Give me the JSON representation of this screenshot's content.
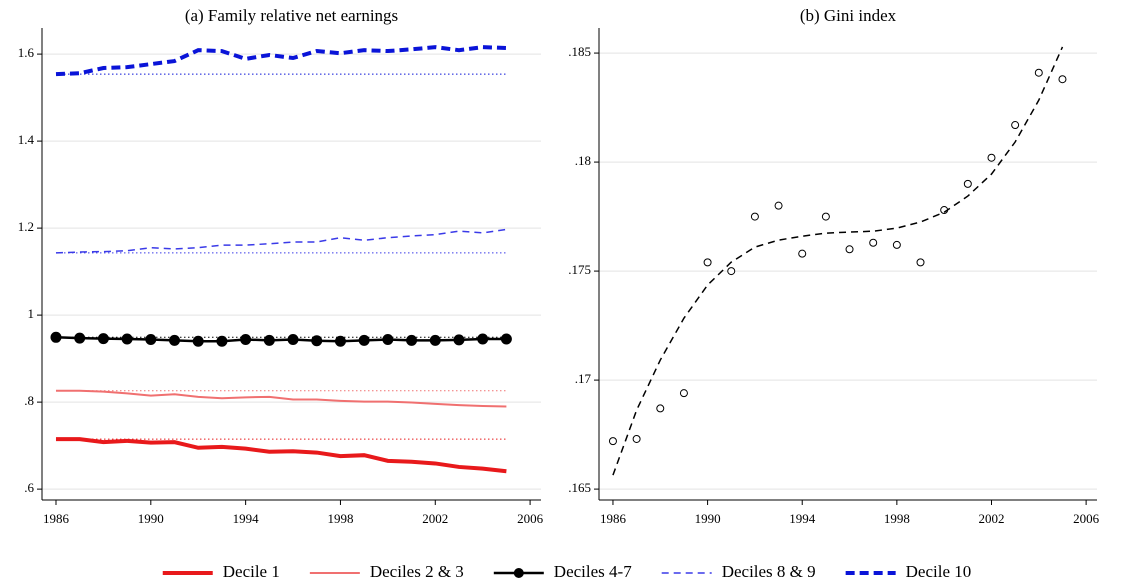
{
  "chart_data": [
    {
      "type": "line",
      "title": "(a) Family relative net earnings",
      "x": [
        1986,
        1987,
        1988,
        1989,
        1990,
        1991,
        1992,
        1993,
        1994,
        1995,
        1996,
        1997,
        1998,
        1999,
        2000,
        2001,
        2002,
        2003,
        2004,
        2005
      ],
      "xlim": [
        1985.41,
        2006.46
      ],
      "xticks": [
        1986,
        1990,
        1994,
        1998,
        2002,
        2006
      ],
      "ylim": [
        0.575,
        1.66
      ],
      "yticks": [
        {
          "value": 0.6,
          "label": ".6"
        },
        {
          "value": 0.8,
          "label": ".8"
        },
        1,
        1.2,
        1.4,
        1.6
      ],
      "grid": true,
      "legend": "bottom",
      "reference_lines": true,
      "series": [
        {
          "name": "Decile 1",
          "color": "#e8191b",
          "line_style": "thick",
          "values": [
            0.715,
            0.715,
            0.708,
            0.711,
            0.707,
            0.708,
            0.695,
            0.697,
            0.693,
            0.686,
            0.687,
            0.684,
            0.676,
            0.678,
            0.665,
            0.663,
            0.659,
            0.651,
            0.647,
            0.641
          ]
        },
        {
          "name": "Deciles 2 & 3",
          "color": "#f07070",
          "line_style": "thin",
          "values": [
            0.826,
            0.826,
            0.824,
            0.82,
            0.815,
            0.818,
            0.812,
            0.809,
            0.811,
            0.812,
            0.806,
            0.806,
            0.803,
            0.801,
            0.801,
            0.799,
            0.796,
            0.793,
            0.791,
            0.79
          ]
        },
        {
          "name": "Deciles 4-7",
          "color": "#000000",
          "line_style": "marker",
          "values": [
            0.949,
            0.947,
            0.946,
            0.945,
            0.944,
            0.942,
            0.94,
            0.94,
            0.944,
            0.942,
            0.944,
            0.941,
            0.94,
            0.942,
            0.944,
            0.942,
            0.942,
            0.943,
            0.945,
            0.945
          ]
        },
        {
          "name": "Deciles 8 & 9",
          "color": "#3a3ae8",
          "line_style": "dashed",
          "values": [
            1.143,
            1.145,
            1.146,
            1.148,
            1.155,
            1.152,
            1.155,
            1.161,
            1.161,
            1.164,
            1.168,
            1.168,
            1.178,
            1.172,
            1.178,
            1.182,
            1.185,
            1.193,
            1.189,
            1.197
          ]
        },
        {
          "name": "Decile 10",
          "color": "#0a14d8",
          "line_style": "thick-dashed",
          "values": [
            1.554,
            1.556,
            1.568,
            1.57,
            1.577,
            1.584,
            1.609,
            1.607,
            1.589,
            1.598,
            1.591,
            1.607,
            1.602,
            1.609,
            1.607,
            1.611,
            1.616,
            1.609,
            1.616,
            1.614
          ]
        }
      ]
    },
    {
      "type": "scatter",
      "title": "(b) Gini index",
      "x": [
        1986,
        1987,
        1988,
        1989,
        1990,
        1991,
        1992,
        1993,
        1994,
        1995,
        1996,
        1997,
        1998,
        1999,
        2000,
        2001,
        2002,
        2003,
        2004,
        2005
      ],
      "xlim": [
        1985.41,
        2006.46
      ],
      "xticks": [
        1986,
        1990,
        1994,
        1998,
        2002,
        2006
      ],
      "ylim": [
        0.1645,
        0.18615
      ],
      "yticks": [
        {
          "value": 0.165,
          "label": ".165"
        },
        {
          "value": 0.17,
          "label": ".17"
        },
        {
          "value": 0.175,
          "label": ".175"
        },
        {
          "value": 0.18,
          "label": ".18"
        },
        {
          "value": 0.185,
          "label": ".185"
        }
      ],
      "grid": true,
      "series": [
        {
          "color": "#000000",
          "line_style": "hollow-circle",
          "values": [
            0.1672,
            0.1673,
            0.1687,
            0.1694,
            0.1754,
            0.175,
            0.1775,
            0.178,
            0.1758,
            0.1775,
            0.176,
            0.1763,
            0.1762,
            0.1754,
            0.1778,
            0.179,
            0.1802,
            0.1817,
            0.1841,
            0.1838
          ]
        },
        {
          "color": "#000000",
          "line_style": "dashed",
          "values": [
            0.16564,
            0.16862,
            0.17092,
            0.17284,
            0.17436,
            0.17541,
            0.1761,
            0.17642,
            0.1766,
            0.17674,
            0.17679,
            0.17683,
            0.17697,
            0.17725,
            0.1777,
            0.17844,
            0.17945,
            0.18092,
            0.18284,
            0.18528
          ]
        }
      ]
    }
  ]
}
